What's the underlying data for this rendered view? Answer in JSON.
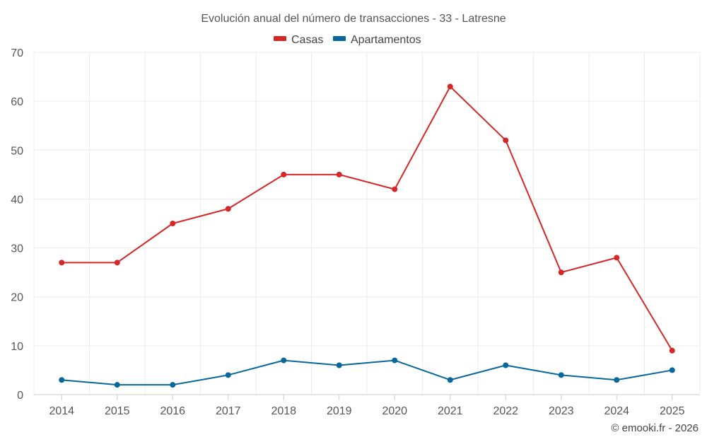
{
  "chart_data": {
    "type": "line",
    "title": "Evolución anual del número de transacciones - 33 - Latresne",
    "categories": [
      "2014",
      "2015",
      "2016",
      "2017",
      "2018",
      "2019",
      "2020",
      "2021",
      "2022",
      "2023",
      "2024",
      "2025"
    ],
    "series": [
      {
        "name": "Casas",
        "color": "#d62728",
        "values": [
          27,
          27,
          35,
          38,
          45,
          45,
          42,
          63,
          52,
          25,
          28,
          9
        ]
      },
      {
        "name": "Apartamentos",
        "color": "#08689a",
        "values": [
          3,
          2,
          2,
          4,
          7,
          6,
          7,
          3,
          6,
          4,
          3,
          5
        ]
      }
    ],
    "ylim": [
      0,
      70
    ],
    "yticks": [
      0,
      10,
      20,
      30,
      40,
      50,
      60,
      70
    ],
    "xlabel": "",
    "ylabel": "",
    "grid": true,
    "legend": "top-center"
  },
  "credit": "© emooki.fr - 2026"
}
